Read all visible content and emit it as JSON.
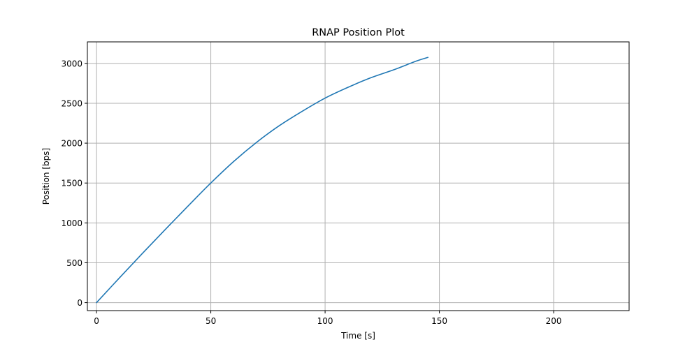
{
  "chart_data": {
    "type": "line",
    "title": "RNAP Position Plot",
    "xlabel": "Time [s]",
    "ylabel": "Position [bps]",
    "xlim": [
      -4,
      233
    ],
    "ylim": [
      -100,
      3270
    ],
    "xticks": [
      0,
      50,
      100,
      150,
      200
    ],
    "yticks": [
      0,
      500,
      1000,
      1500,
      2000,
      2500,
      3000
    ],
    "grid": true,
    "series": [
      {
        "color": "#1f77b4",
        "x": [
          0,
          10,
          20,
          30,
          40,
          50,
          60,
          70,
          80,
          90,
          100,
          110,
          120,
          130,
          140,
          145
        ],
        "y": [
          0,
          310,
          615,
          915,
          1210,
          1500,
          1770,
          2010,
          2220,
          2400,
          2565,
          2700,
          2820,
          2920,
          3030,
          3075
        ]
      }
    ]
  }
}
